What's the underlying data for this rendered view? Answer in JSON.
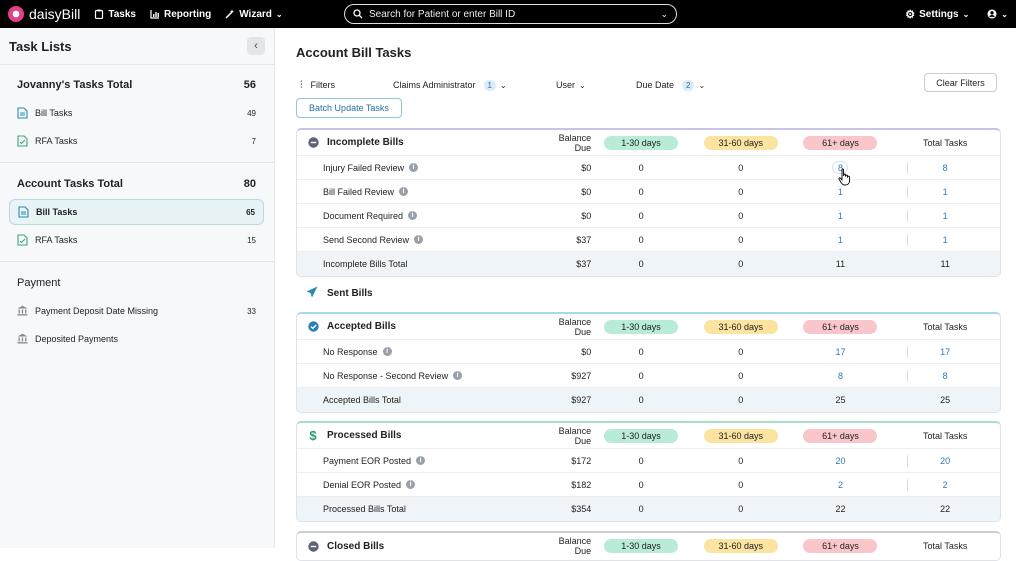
{
  "nav": {
    "brand": "daisyBill",
    "tasks": "Tasks",
    "reporting": "Reporting",
    "wizard": "Wizard",
    "search_placeholder": "Search for Patient or enter Bill ID",
    "settings": "Settings"
  },
  "sidebar": {
    "title": "Task Lists",
    "sections": [
      {
        "title": "Jovanny's Tasks Total",
        "count": "56",
        "items": [
          {
            "label": "Bill Tasks",
            "count": "49"
          },
          {
            "label": "RFA Tasks",
            "count": "7"
          }
        ]
      },
      {
        "title": "Account Tasks Total",
        "count": "80",
        "items": [
          {
            "label": "Bill Tasks",
            "count": "65"
          },
          {
            "label": "RFA Tasks",
            "count": "15"
          }
        ]
      },
      {
        "title": "Payment",
        "count": "",
        "items": [
          {
            "label": "Payment Deposit Date Missing",
            "count": "33"
          },
          {
            "label": "Deposited Payments",
            "count": ""
          }
        ]
      }
    ]
  },
  "main": {
    "title": "Account Bill Tasks",
    "filters": {
      "label": "Filters",
      "claims_admin": "Claims Administrator",
      "claims_admin_count": "1",
      "user": "User",
      "due_date": "Due Date",
      "due_date_count": "2",
      "clear": "Clear Filters"
    },
    "batch_update": "Batch Update Tasks",
    "columns": {
      "balance": "Balance Due",
      "d1": "1-30 days",
      "d2": "31-60 days",
      "d3": "61+ days",
      "total": "Total Tasks"
    },
    "colors": {
      "d1": "#b9ecd7",
      "d2": "#fbe3a0",
      "d3": "#f9c6cc",
      "accent": "#2a79b8"
    },
    "incomplete": {
      "title": "Incomplete Bills",
      "rows": [
        {
          "name": "Injury Failed Review",
          "balance": "$0",
          "d1": "0",
          "d2": "0",
          "d3": "8",
          "total": "8"
        },
        {
          "name": "Bill Failed Review",
          "balance": "$0",
          "d1": "0",
          "d2": "0",
          "d3": "1",
          "total": "1"
        },
        {
          "name": "Document Required",
          "balance": "$0",
          "d1": "0",
          "d2": "0",
          "d3": "1",
          "total": "1"
        },
        {
          "name": "Send Second Review",
          "balance": "$37",
          "d1": "0",
          "d2": "0",
          "d3": "1",
          "total": "1"
        }
      ],
      "total": {
        "name": "Incomplete Bills Total",
        "balance": "$37",
        "d1": "0",
        "d2": "0",
        "d3": "11",
        "total": "11"
      }
    },
    "sent_bills": "Sent Bills",
    "accepted": {
      "title": "Accepted Bills",
      "rows": [
        {
          "name": "No Response",
          "balance": "$0",
          "d1": "0",
          "d2": "0",
          "d3": "17",
          "total": "17"
        },
        {
          "name": "No Response - Second Review",
          "balance": "$927",
          "d1": "0",
          "d2": "0",
          "d3": "8",
          "total": "8"
        }
      ],
      "total": {
        "name": "Accepted Bills Total",
        "balance": "$927",
        "d1": "0",
        "d2": "0",
        "d3": "25",
        "total": "25"
      }
    },
    "processed": {
      "title": "Processed Bills",
      "rows": [
        {
          "name": "Payment EOR Posted",
          "balance": "$172",
          "d1": "0",
          "d2": "0",
          "d3": "20",
          "total": "20"
        },
        {
          "name": "Denial EOR Posted",
          "balance": "$182",
          "d1": "0",
          "d2": "0",
          "d3": "2",
          "total": "2"
        }
      ],
      "total": {
        "name": "Processed Bills Total",
        "balance": "$354",
        "d1": "0",
        "d2": "0",
        "d3": "22",
        "total": "22"
      }
    },
    "closed": {
      "title": "Closed Bills"
    }
  }
}
